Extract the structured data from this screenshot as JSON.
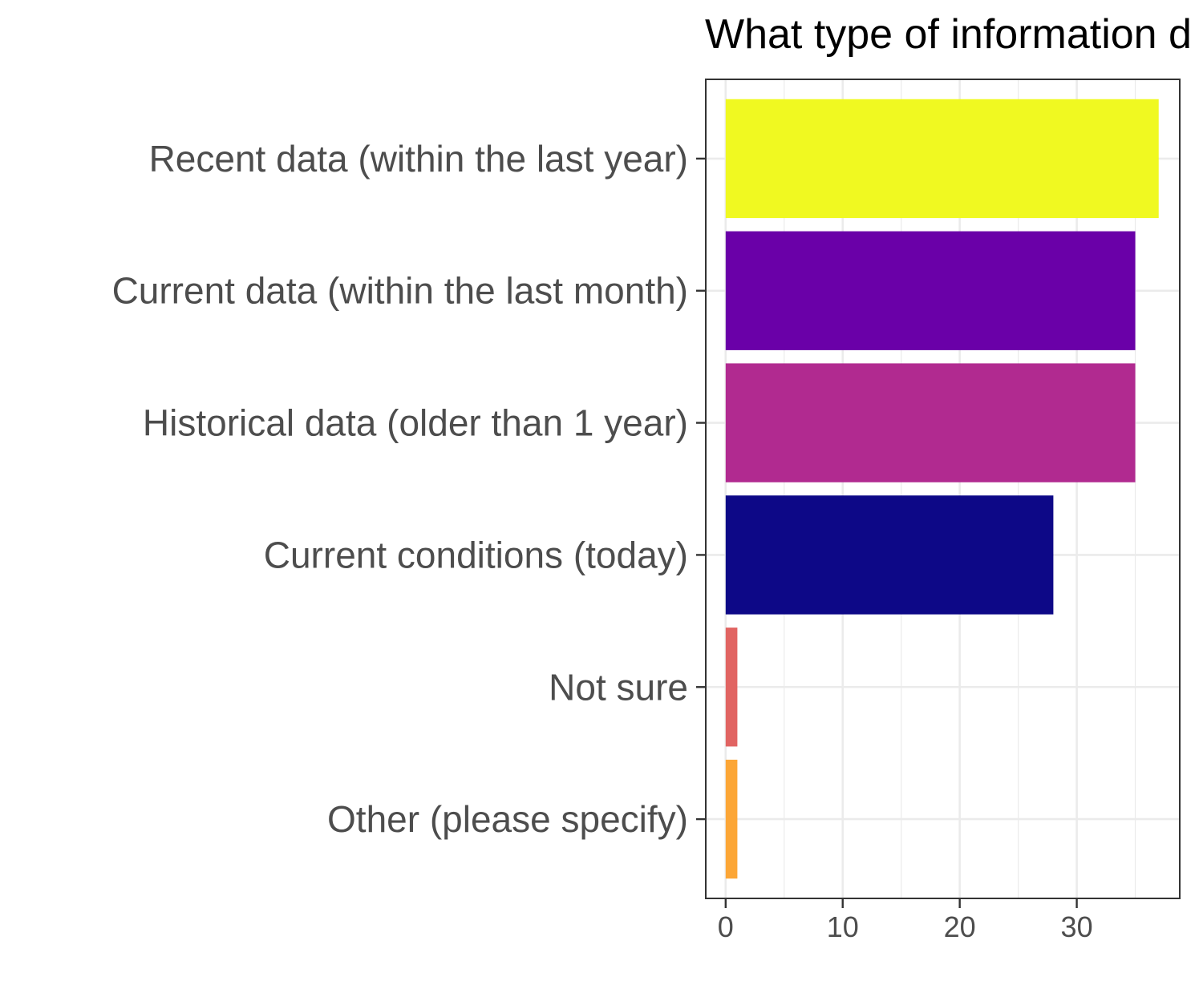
{
  "chart_data": {
    "type": "bar",
    "orientation": "horizontal",
    "title": "What type of information d",
    "xlabel": "",
    "ylabel": "",
    "xlim": [
      -1.7,
      38.8
    ],
    "x_ticks": [
      0,
      10,
      20,
      30
    ],
    "x_tick_labels": [
      "0",
      "10",
      "20",
      "30"
    ],
    "grid": true,
    "legend": "none",
    "categories": [
      "Recent data (within the last year)",
      "Current data (within the last month)",
      "Historical data (older than 1 year)",
      "Current conditions (today)",
      "Not sure",
      "Other (please specify)"
    ],
    "values": [
      37,
      35,
      35,
      28,
      1,
      1
    ],
    "colors": [
      "#f0f921",
      "#6a00a8",
      "#b12a90",
      "#0d0887",
      "#e16462",
      "#fca636"
    ]
  },
  "style": {
    "panel_border_color": "#333333",
    "grid_color": "#ebebeb",
    "label_color": "#4d4d4d",
    "title_color": "#000000"
  }
}
